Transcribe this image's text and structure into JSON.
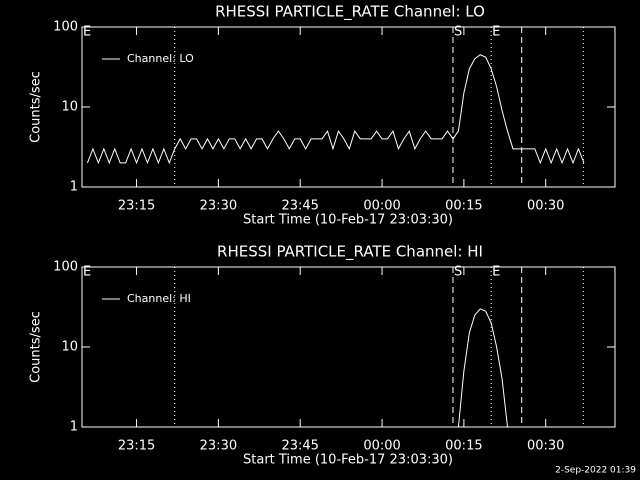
{
  "chart_data": [
    {
      "type": "line",
      "title": "RHESSI PARTICLE_RATE Channel: LO",
      "xlabel": "Start Time (10-Feb-17 23:03:30)",
      "ylabel": "Counts/sec",
      "x": [
        6,
        7,
        8,
        9,
        10,
        11,
        12,
        13,
        14,
        15,
        16,
        17,
        18,
        19,
        20,
        21,
        22,
        23,
        24,
        25,
        26,
        27,
        28,
        29,
        30,
        31,
        32,
        33,
        34,
        35,
        36,
        37,
        38,
        39,
        40,
        41,
        42,
        43,
        44,
        45,
        46,
        47,
        48,
        49,
        50,
        51,
        52,
        53,
        54,
        55,
        56,
        57,
        58,
        59,
        60,
        61,
        62,
        63,
        64,
        65,
        66,
        67,
        68,
        69,
        70,
        71,
        72,
        73,
        74,
        75,
        76,
        77,
        78,
        79,
        80,
        81,
        82,
        83,
        84,
        85,
        86,
        87,
        88,
        89,
        90,
        91,
        92,
        93,
        94,
        95,
        96,
        97
      ],
      "series": [
        {
          "name": "Channel: LO",
          "color": "#ffffff",
          "values": [
            2,
            3,
            2,
            3,
            2,
            3,
            2,
            2,
            3,
            2,
            3,
            2,
            3,
            2,
            3,
            2,
            3,
            4,
            3,
            4,
            4,
            3,
            4,
            3,
            4,
            3,
            4,
            4,
            3,
            4,
            3,
            4,
            4,
            3,
            4,
            5,
            4,
            3,
            4,
            4,
            3,
            4,
            4,
            4,
            5,
            3,
            5,
            4,
            3,
            5,
            4,
            4,
            4,
            5,
            4,
            4,
            5,
            3,
            4,
            5,
            3,
            4,
            5,
            4,
            4,
            4,
            5,
            4,
            5,
            15,
            30,
            40,
            45,
            42,
            30,
            18,
            9,
            5,
            3,
            3,
            3,
            3,
            3,
            2,
            3,
            2,
            3,
            2,
            3,
            2,
            3,
            2
          ]
        }
      ],
      "xlim": [
        5,
        102.7
      ],
      "xticks": [
        {
          "value": 15,
          "label": "23:15"
        },
        {
          "value": 30,
          "label": "23:30"
        },
        {
          "value": 45,
          "label": "23:45"
        },
        {
          "value": 60,
          "label": "00:00"
        },
        {
          "value": 75,
          "label": "00:15"
        },
        {
          "value": 90,
          "label": "00:30"
        }
      ],
      "ylim": [
        1,
        100
      ],
      "yticks": [
        1,
        10,
        100
      ],
      "log_y": true,
      "events": [
        {
          "x": 5,
          "label": "E"
        },
        {
          "x": 22,
          "style": "dotted"
        },
        {
          "x": 73,
          "style": "dashed",
          "label": "S"
        },
        {
          "x": 80,
          "style": "dotted",
          "label": "E"
        },
        {
          "x": 85.6,
          "style": "dashed"
        },
        {
          "x": 96.9,
          "style": "dotted"
        }
      ]
    },
    {
      "type": "line",
      "title": "RHESSI PARTICLE_RATE Channel: HI",
      "xlabel": "Start Time (10-Feb-17 23:03:30)",
      "ylabel": "Counts/sec",
      "x": [
        74,
        75,
        76,
        77,
        78,
        79,
        80,
        81,
        82,
        83
      ],
      "series": [
        {
          "name": "Channel: HI",
          "color": "#ffffff",
          "values": [
            1,
            5,
            15,
            25,
            30,
            28,
            20,
            10,
            4,
            1
          ]
        }
      ],
      "xlim": [
        5,
        102.7
      ],
      "xticks": [
        {
          "value": 15,
          "label": "23:15"
        },
        {
          "value": 30,
          "label": "23:30"
        },
        {
          "value": 45,
          "label": "23:45"
        },
        {
          "value": 60,
          "label": "00:00"
        },
        {
          "value": 75,
          "label": "00:15"
        },
        {
          "value": 90,
          "label": "00:30"
        }
      ],
      "ylim": [
        1,
        100
      ],
      "yticks": [
        1,
        10,
        100
      ],
      "log_y": true,
      "events": [
        {
          "x": 5,
          "label": "E"
        },
        {
          "x": 22,
          "style": "dotted"
        },
        {
          "x": 73,
          "style": "dashed",
          "label": "S"
        },
        {
          "x": 80,
          "style": "dotted",
          "label": "E"
        },
        {
          "x": 85.6,
          "style": "dashed"
        },
        {
          "x": 96.9,
          "style": "dotted"
        }
      ]
    }
  ],
  "footer": "2-Sep-2022 01:39"
}
